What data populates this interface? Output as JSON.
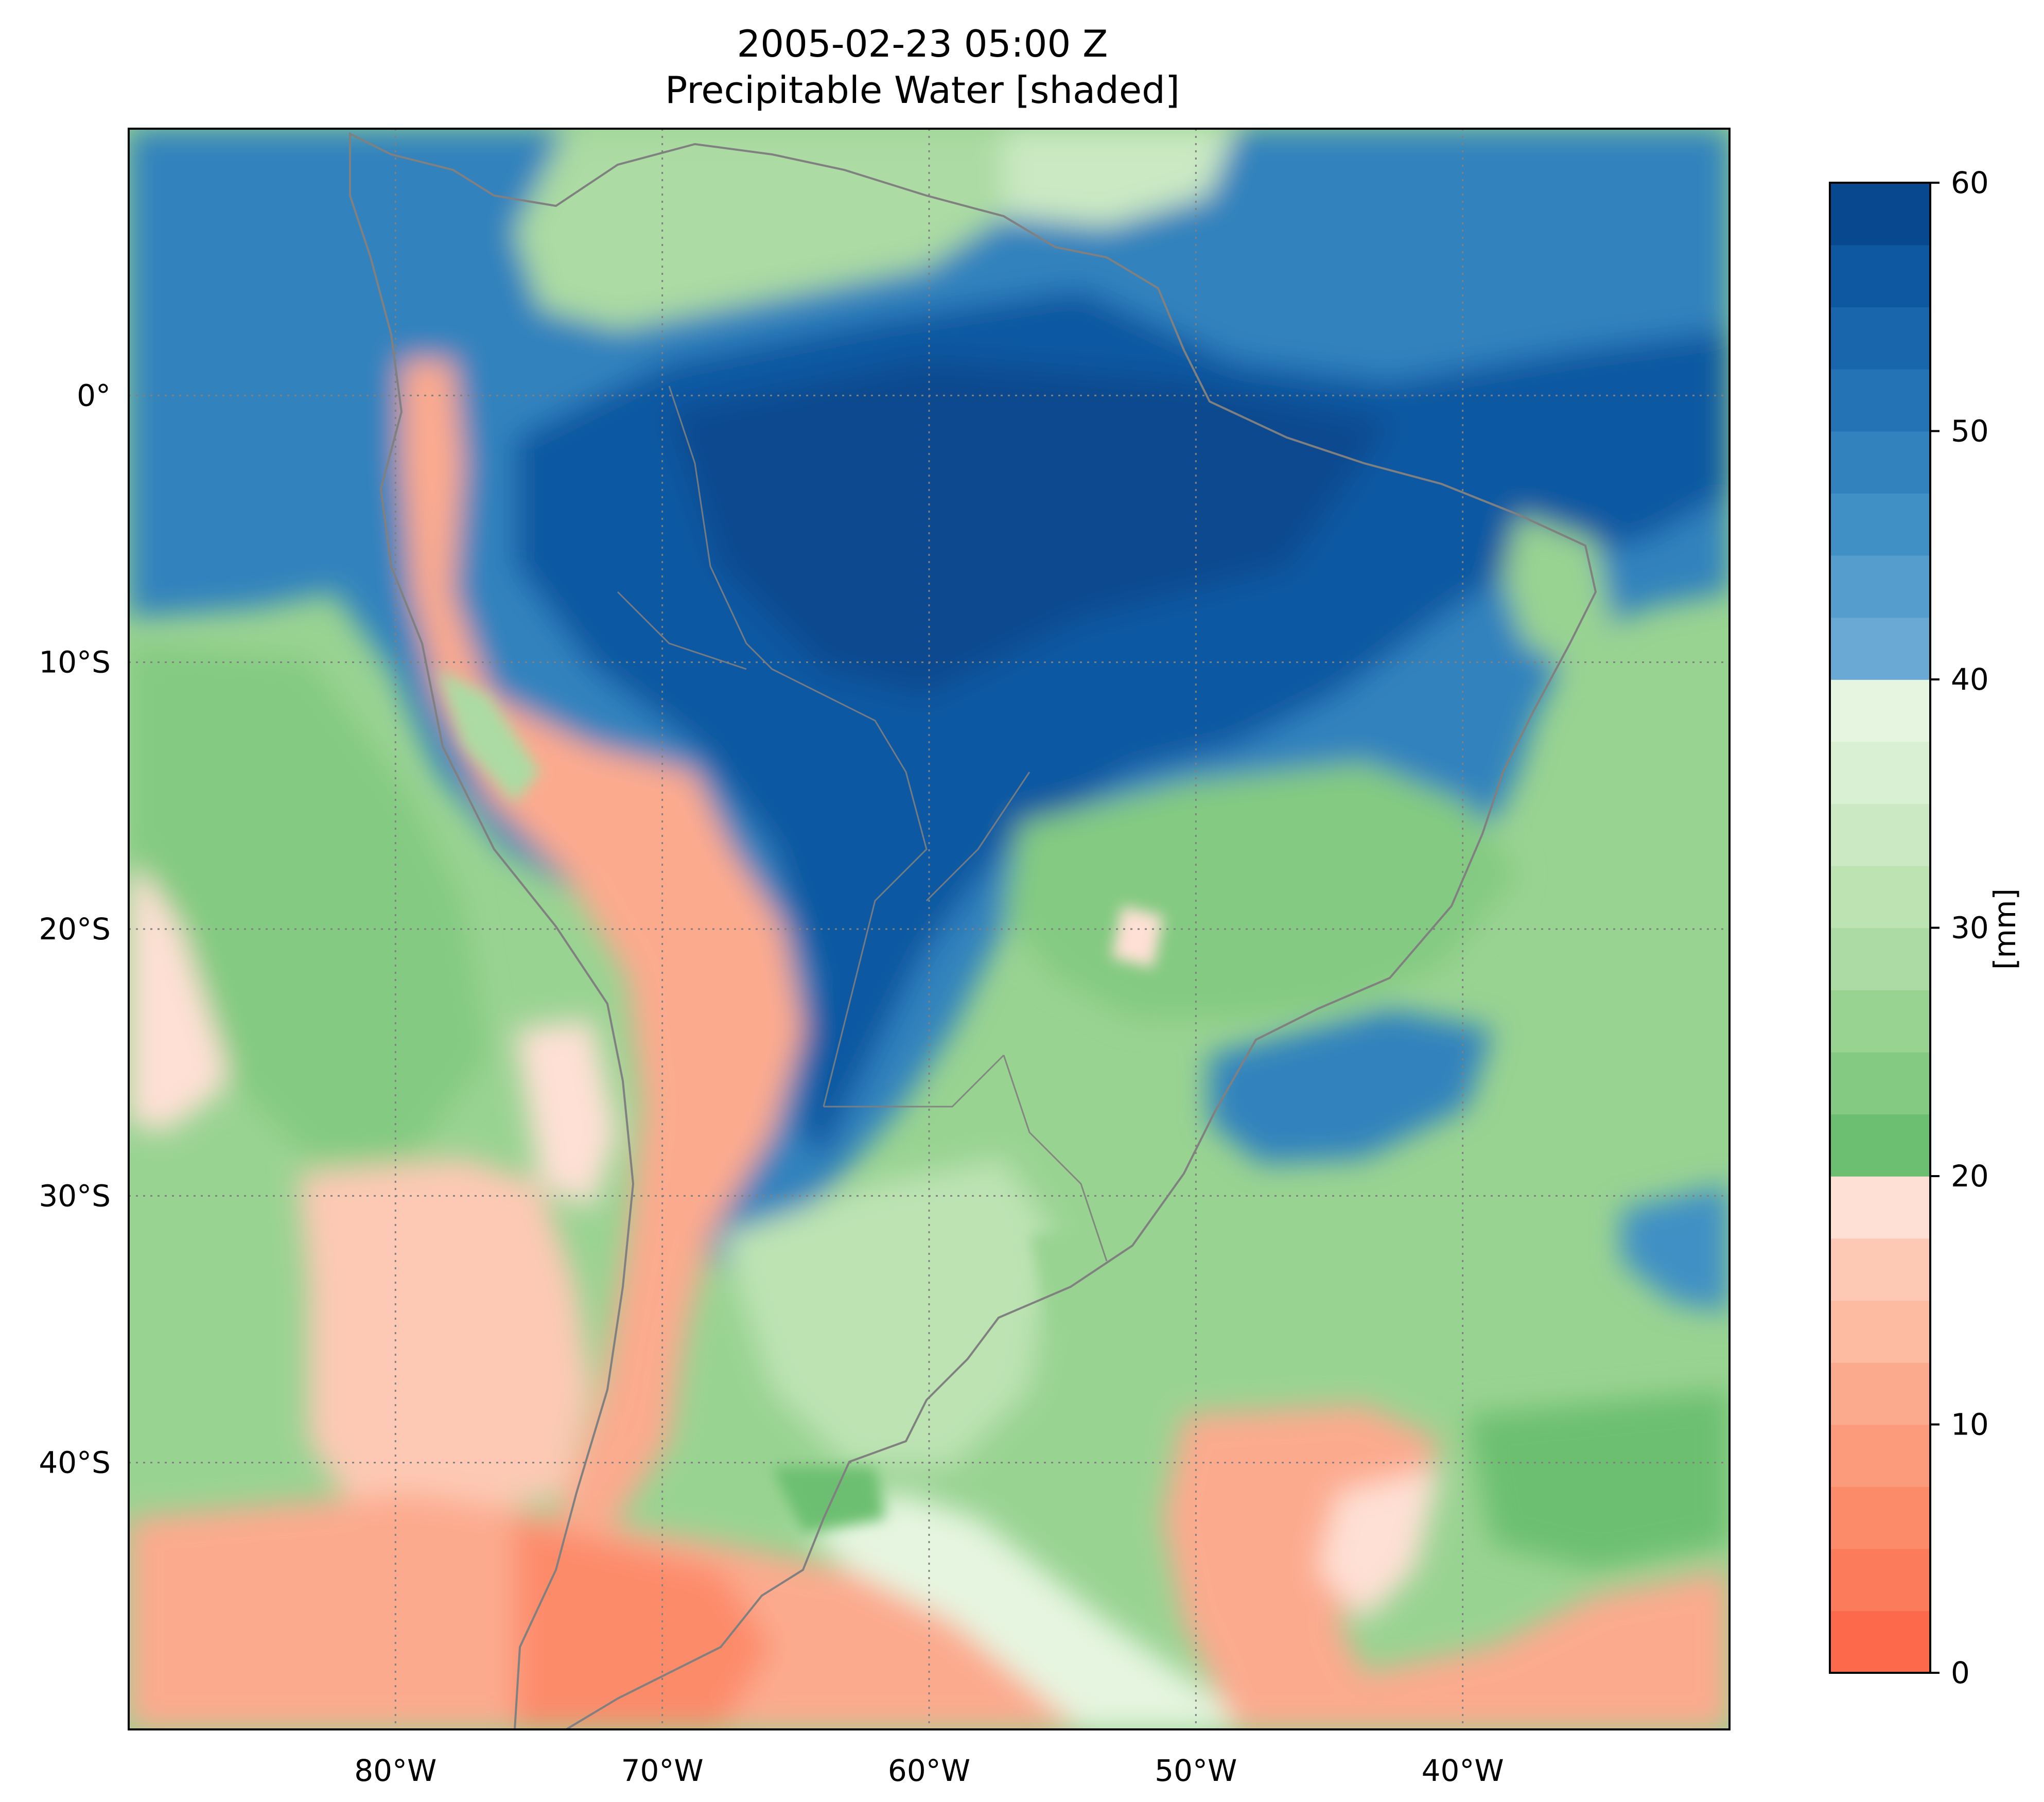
{
  "title": {
    "line1": "2005-02-23 05:00 Z",
    "line2": "Precipitable Water [shaded]"
  },
  "map": {
    "lon_range": [
      -90,
      -30
    ],
    "lat_range": [
      -50,
      10
    ],
    "lon_ticks": [
      {
        "value": -80,
        "label": "80°W"
      },
      {
        "value": -70,
        "label": "70°W"
      },
      {
        "value": -60,
        "label": "60°W"
      },
      {
        "value": -50,
        "label": "50°W"
      },
      {
        "value": -40,
        "label": "40°W"
      }
    ],
    "lat_ticks": [
      {
        "value": 0,
        "label": "0°"
      },
      {
        "value": -10,
        "label": "10°S"
      },
      {
        "value": -20,
        "label": "20°S"
      },
      {
        "value": -30,
        "label": "30°S"
      },
      {
        "value": -40,
        "label": "40°S"
      }
    ],
    "gridlines": "dotted gray",
    "coastlines": "gray"
  },
  "colorbar": {
    "label": "[mm]",
    "range": [
      0,
      60
    ],
    "ticks": [
      {
        "value": 0,
        "label": "0"
      },
      {
        "value": 10,
        "label": "10"
      },
      {
        "value": 20,
        "label": "20"
      },
      {
        "value": 30,
        "label": "30"
      },
      {
        "value": 40,
        "label": "40"
      },
      {
        "value": 50,
        "label": "50"
      },
      {
        "value": 60,
        "label": "60"
      }
    ],
    "levels": 24,
    "colors": {
      "reds": [
        "#fc6a4b",
        "#fc7b5b",
        "#fc8b6a",
        "#fc9b7c",
        "#fcaa8e",
        "#fdbba2",
        "#fdc9b4",
        "#fee0d4"
      ],
      "greens": [
        "#6cbf70",
        "#84ca82",
        "#99d392",
        "#acdba3",
        "#bde3b3",
        "#cbe9c3",
        "#d9f0d3",
        "#e6f5e0"
      ],
      "blues": [
        "#6aa9d3",
        "#549dcc",
        "#4190c5",
        "#3182bd",
        "#2474b5",
        "#1966ad",
        "#0e58a2",
        "#08488e"
      ]
    }
  }
}
